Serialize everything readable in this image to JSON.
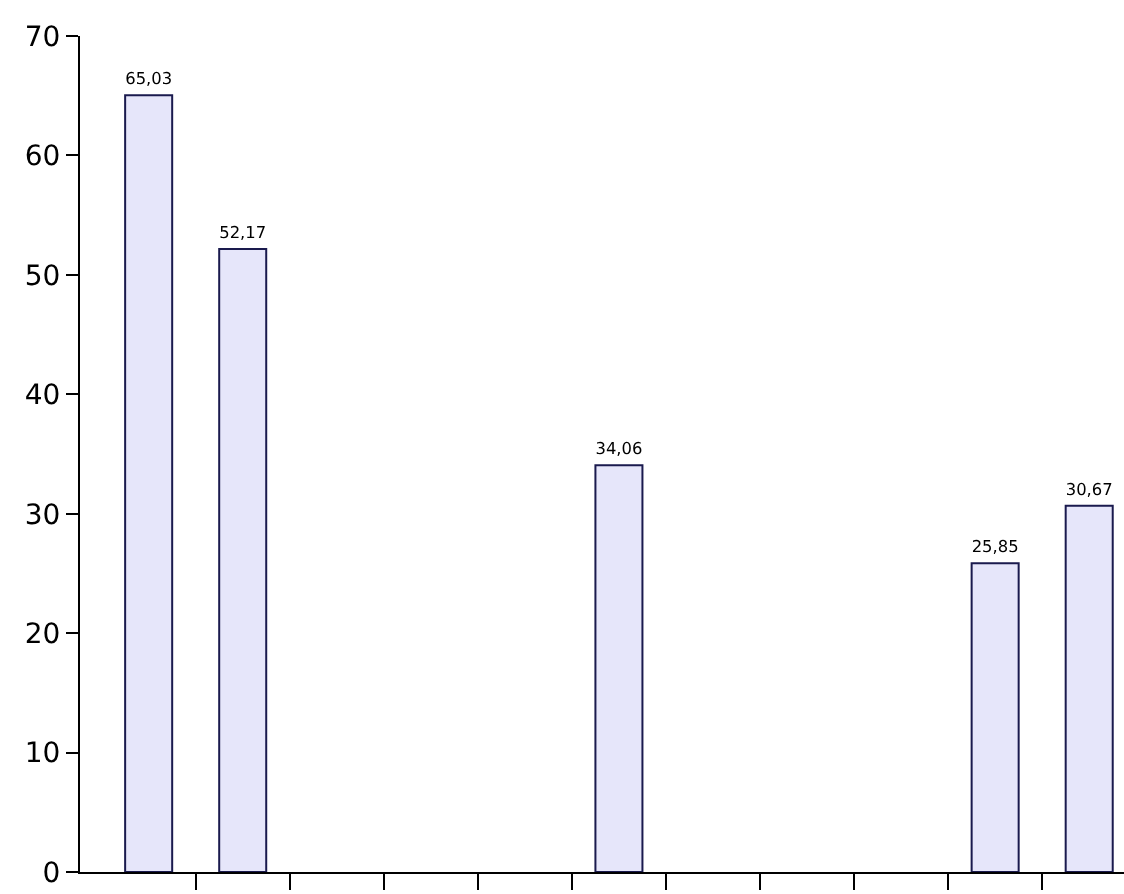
{
  "chart_data": {
    "type": "bar",
    "categories": [
      null,
      null,
      null,
      null,
      null,
      null,
      null,
      null,
      null,
      null,
      null
    ],
    "values": [
      65.03,
      52.17,
      null,
      null,
      null,
      34.06,
      null,
      null,
      null,
      25.85,
      30.67
    ],
    "value_labels": [
      "65,03",
      "52,17",
      null,
      null,
      null,
      "34,06",
      null,
      null,
      null,
      "25,85",
      "30,67"
    ],
    "color": "#e6e6fa",
    "ylim": [
      0,
      70
    ],
    "yticks": [
      0,
      10,
      20,
      30,
      40,
      50,
      60,
      70
    ]
  }
}
